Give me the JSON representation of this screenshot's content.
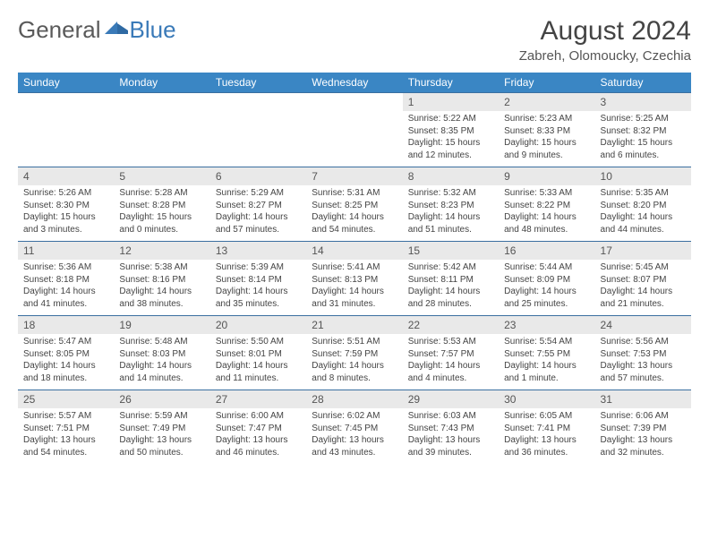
{
  "brand": {
    "part1": "General",
    "part2": "Blue"
  },
  "title": "August 2024",
  "location": "Zabreh, Olomoucky, Czechia",
  "colors": {
    "header_bg": "#3a86c4",
    "header_text": "#ffffff",
    "daynum_bg": "#e9e9e9",
    "rule": "#3a6fa0",
    "brand_gray": "#5a5a5a",
    "brand_blue": "#3a7ab8"
  },
  "day_headers": [
    "Sunday",
    "Monday",
    "Tuesday",
    "Wednesday",
    "Thursday",
    "Friday",
    "Saturday"
  ],
  "weeks": [
    [
      null,
      null,
      null,
      null,
      {
        "n": "1",
        "sr": "5:22 AM",
        "ss": "8:35 PM",
        "dl": "15 hours and 12 minutes."
      },
      {
        "n": "2",
        "sr": "5:23 AM",
        "ss": "8:33 PM",
        "dl": "15 hours and 9 minutes."
      },
      {
        "n": "3",
        "sr": "5:25 AM",
        "ss": "8:32 PM",
        "dl": "15 hours and 6 minutes."
      }
    ],
    [
      {
        "n": "4",
        "sr": "5:26 AM",
        "ss": "8:30 PM",
        "dl": "15 hours and 3 minutes."
      },
      {
        "n": "5",
        "sr": "5:28 AM",
        "ss": "8:28 PM",
        "dl": "15 hours and 0 minutes."
      },
      {
        "n": "6",
        "sr": "5:29 AM",
        "ss": "8:27 PM",
        "dl": "14 hours and 57 minutes."
      },
      {
        "n": "7",
        "sr": "5:31 AM",
        "ss": "8:25 PM",
        "dl": "14 hours and 54 minutes."
      },
      {
        "n": "8",
        "sr": "5:32 AM",
        "ss": "8:23 PM",
        "dl": "14 hours and 51 minutes."
      },
      {
        "n": "9",
        "sr": "5:33 AM",
        "ss": "8:22 PM",
        "dl": "14 hours and 48 minutes."
      },
      {
        "n": "10",
        "sr": "5:35 AM",
        "ss": "8:20 PM",
        "dl": "14 hours and 44 minutes."
      }
    ],
    [
      {
        "n": "11",
        "sr": "5:36 AM",
        "ss": "8:18 PM",
        "dl": "14 hours and 41 minutes."
      },
      {
        "n": "12",
        "sr": "5:38 AM",
        "ss": "8:16 PM",
        "dl": "14 hours and 38 minutes."
      },
      {
        "n": "13",
        "sr": "5:39 AM",
        "ss": "8:14 PM",
        "dl": "14 hours and 35 minutes."
      },
      {
        "n": "14",
        "sr": "5:41 AM",
        "ss": "8:13 PM",
        "dl": "14 hours and 31 minutes."
      },
      {
        "n": "15",
        "sr": "5:42 AM",
        "ss": "8:11 PM",
        "dl": "14 hours and 28 minutes."
      },
      {
        "n": "16",
        "sr": "5:44 AM",
        "ss": "8:09 PM",
        "dl": "14 hours and 25 minutes."
      },
      {
        "n": "17",
        "sr": "5:45 AM",
        "ss": "8:07 PM",
        "dl": "14 hours and 21 minutes."
      }
    ],
    [
      {
        "n": "18",
        "sr": "5:47 AM",
        "ss": "8:05 PM",
        "dl": "14 hours and 18 minutes."
      },
      {
        "n": "19",
        "sr": "5:48 AM",
        "ss": "8:03 PM",
        "dl": "14 hours and 14 minutes."
      },
      {
        "n": "20",
        "sr": "5:50 AM",
        "ss": "8:01 PM",
        "dl": "14 hours and 11 minutes."
      },
      {
        "n": "21",
        "sr": "5:51 AM",
        "ss": "7:59 PM",
        "dl": "14 hours and 8 minutes."
      },
      {
        "n": "22",
        "sr": "5:53 AM",
        "ss": "7:57 PM",
        "dl": "14 hours and 4 minutes."
      },
      {
        "n": "23",
        "sr": "5:54 AM",
        "ss": "7:55 PM",
        "dl": "14 hours and 1 minute."
      },
      {
        "n": "24",
        "sr": "5:56 AM",
        "ss": "7:53 PM",
        "dl": "13 hours and 57 minutes."
      }
    ],
    [
      {
        "n": "25",
        "sr": "5:57 AM",
        "ss": "7:51 PM",
        "dl": "13 hours and 54 minutes."
      },
      {
        "n": "26",
        "sr": "5:59 AM",
        "ss": "7:49 PM",
        "dl": "13 hours and 50 minutes."
      },
      {
        "n": "27",
        "sr": "6:00 AM",
        "ss": "7:47 PM",
        "dl": "13 hours and 46 minutes."
      },
      {
        "n": "28",
        "sr": "6:02 AM",
        "ss": "7:45 PM",
        "dl": "13 hours and 43 minutes."
      },
      {
        "n": "29",
        "sr": "6:03 AM",
        "ss": "7:43 PM",
        "dl": "13 hours and 39 minutes."
      },
      {
        "n": "30",
        "sr": "6:05 AM",
        "ss": "7:41 PM",
        "dl": "13 hours and 36 minutes."
      },
      {
        "n": "31",
        "sr": "6:06 AM",
        "ss": "7:39 PM",
        "dl": "13 hours and 32 minutes."
      }
    ]
  ],
  "labels": {
    "sunrise": "Sunrise: ",
    "sunset": "Sunset: ",
    "daylight": "Daylight: "
  }
}
